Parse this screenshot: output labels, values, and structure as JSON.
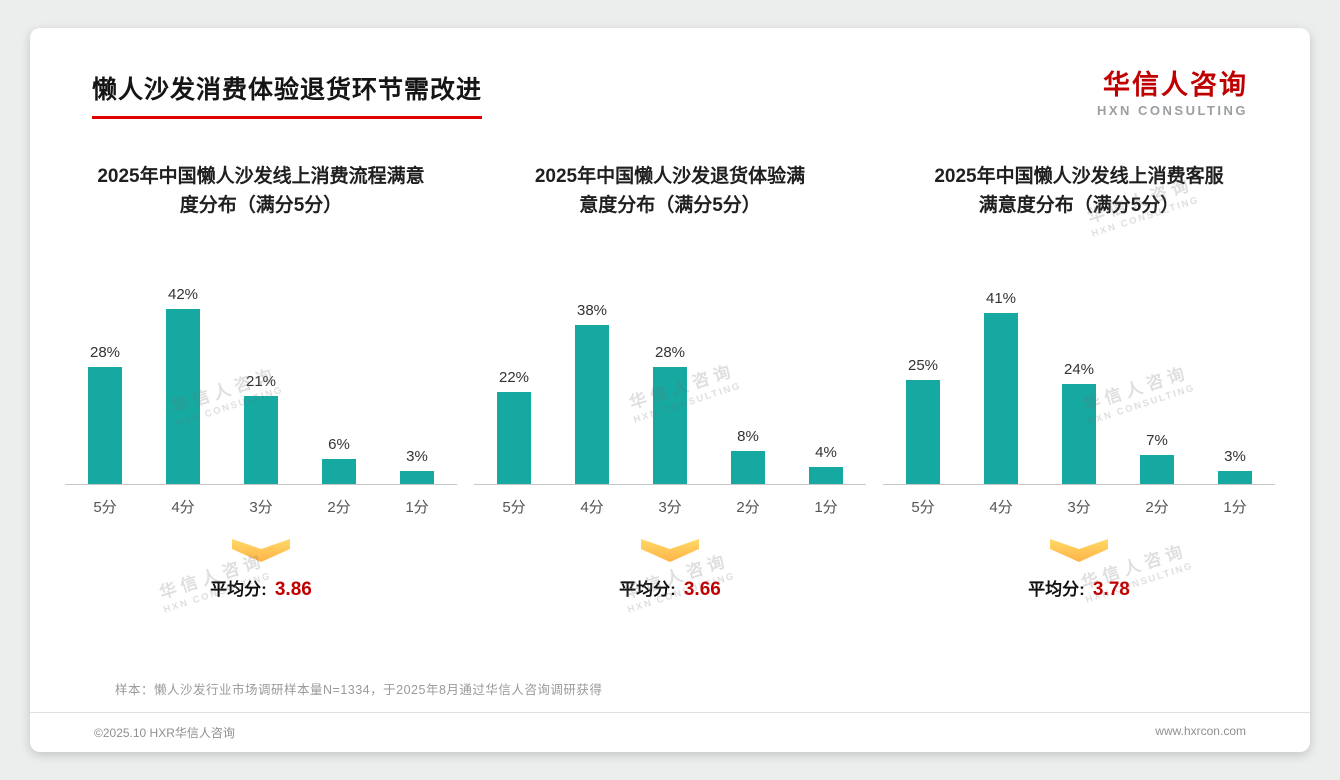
{
  "page": {
    "title": "懒人沙发消费体验退货环节需改进",
    "logo": {
      "cn": "华信人咨询",
      "en": "HXN CONSULTING"
    },
    "watermark": {
      "cn": "华信人咨询",
      "en": "HXN CONSULTING"
    },
    "footnote": "样本：懒人沙发行业市场调研样本量N=1334，于2025年8月通过华信人咨询调研获得",
    "copyright": "©2025.10 HXR华信人咨询",
    "website": "www.hxrcon.com"
  },
  "colors": {
    "bar": "#16a9a1",
    "accent_red": "#c00000",
    "arrow_top": "#ffd966",
    "arrow_bottom": "#ffb348"
  },
  "chart_data": [
    {
      "type": "bar",
      "title": "2025年中国懒人沙发线上消费流程满意度分布（满分5分）",
      "title_lines": [
        "2025年中国懒人沙发线上消费流程满意",
        "度分布（满分5分）"
      ],
      "categories": [
        "5分",
        "4分",
        "3分",
        "2分",
        "1分"
      ],
      "values": [
        28,
        42,
        21,
        6,
        3
      ],
      "value_suffix": "%",
      "ylim": [
        0,
        45
      ],
      "average_label": "平均分:",
      "average": "3.86"
    },
    {
      "type": "bar",
      "title": "2025年中国懒人沙发退货体验满意度分布（满分5分）",
      "title_lines": [
        "2025年中国懒人沙发退货体验满",
        "意度分布（满分5分）"
      ],
      "categories": [
        "5分",
        "4分",
        "3分",
        "2分",
        "1分"
      ],
      "values": [
        22,
        38,
        28,
        8,
        4
      ],
      "value_suffix": "%",
      "ylim": [
        0,
        45
      ],
      "average_label": "平均分:",
      "average": "3.66"
    },
    {
      "type": "bar",
      "title": "2025年中国懒人沙发线上消费客服满意度分布（满分5分）",
      "title_lines": [
        "2025年中国懒人沙发线上消费客服",
        "满意度分布（满分5分）"
      ],
      "categories": [
        "5分",
        "4分",
        "3分",
        "2分",
        "1分"
      ],
      "values": [
        25,
        41,
        24,
        7,
        3
      ],
      "value_suffix": "%",
      "ylim": [
        0,
        45
      ],
      "average_label": "平均分:",
      "average": "3.78"
    }
  ]
}
